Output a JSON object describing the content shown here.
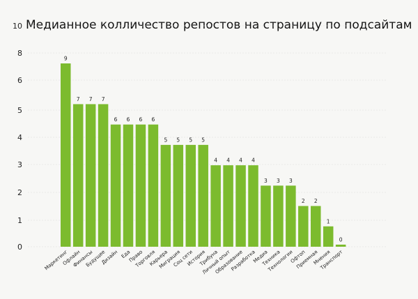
{
  "chart_data": {
    "type": "bar",
    "title": "Медианное колличество репостов на страницу по подсайтам",
    "xlabel": "",
    "ylabel": "",
    "y_tick_labels": [
      "0",
      "1",
      "2",
      "3",
      "4",
      "5",
      "6",
      "8",
      "10"
    ],
    "categories": [
      "Маркетинг",
      "Офлайн",
      "Финансы",
      "Будущее",
      "Дизайн",
      "Еда",
      "Право",
      "Торговля",
      "Карьера",
      "Миграция",
      "Соц сети",
      "История",
      "Трибуна",
      "Личный опыт",
      "Образование",
      "Разработка",
      "Медиа",
      "Техника",
      "Технологии",
      "Офтоп",
      "Приемная",
      "Мнения",
      "Транспорт"
    ],
    "values": [
      9,
      7,
      7,
      7,
      6,
      6,
      6,
      6,
      5,
      5,
      5,
      5,
      4,
      4,
      4,
      4,
      3,
      3,
      3,
      2,
      2,
      1,
      0
    ],
    "data_labels": [
      "9",
      "7",
      "7",
      "7",
      "6",
      "6",
      "6",
      "6",
      "5",
      "5",
      "5",
      "5",
      "4",
      "4",
      "4",
      "4",
      "3",
      "3",
      "3",
      "2",
      "2",
      "1",
      "0"
    ],
    "colors": {
      "bar": "#7cbb2e",
      "background": "#f7f7f5"
    },
    "grid": true
  }
}
